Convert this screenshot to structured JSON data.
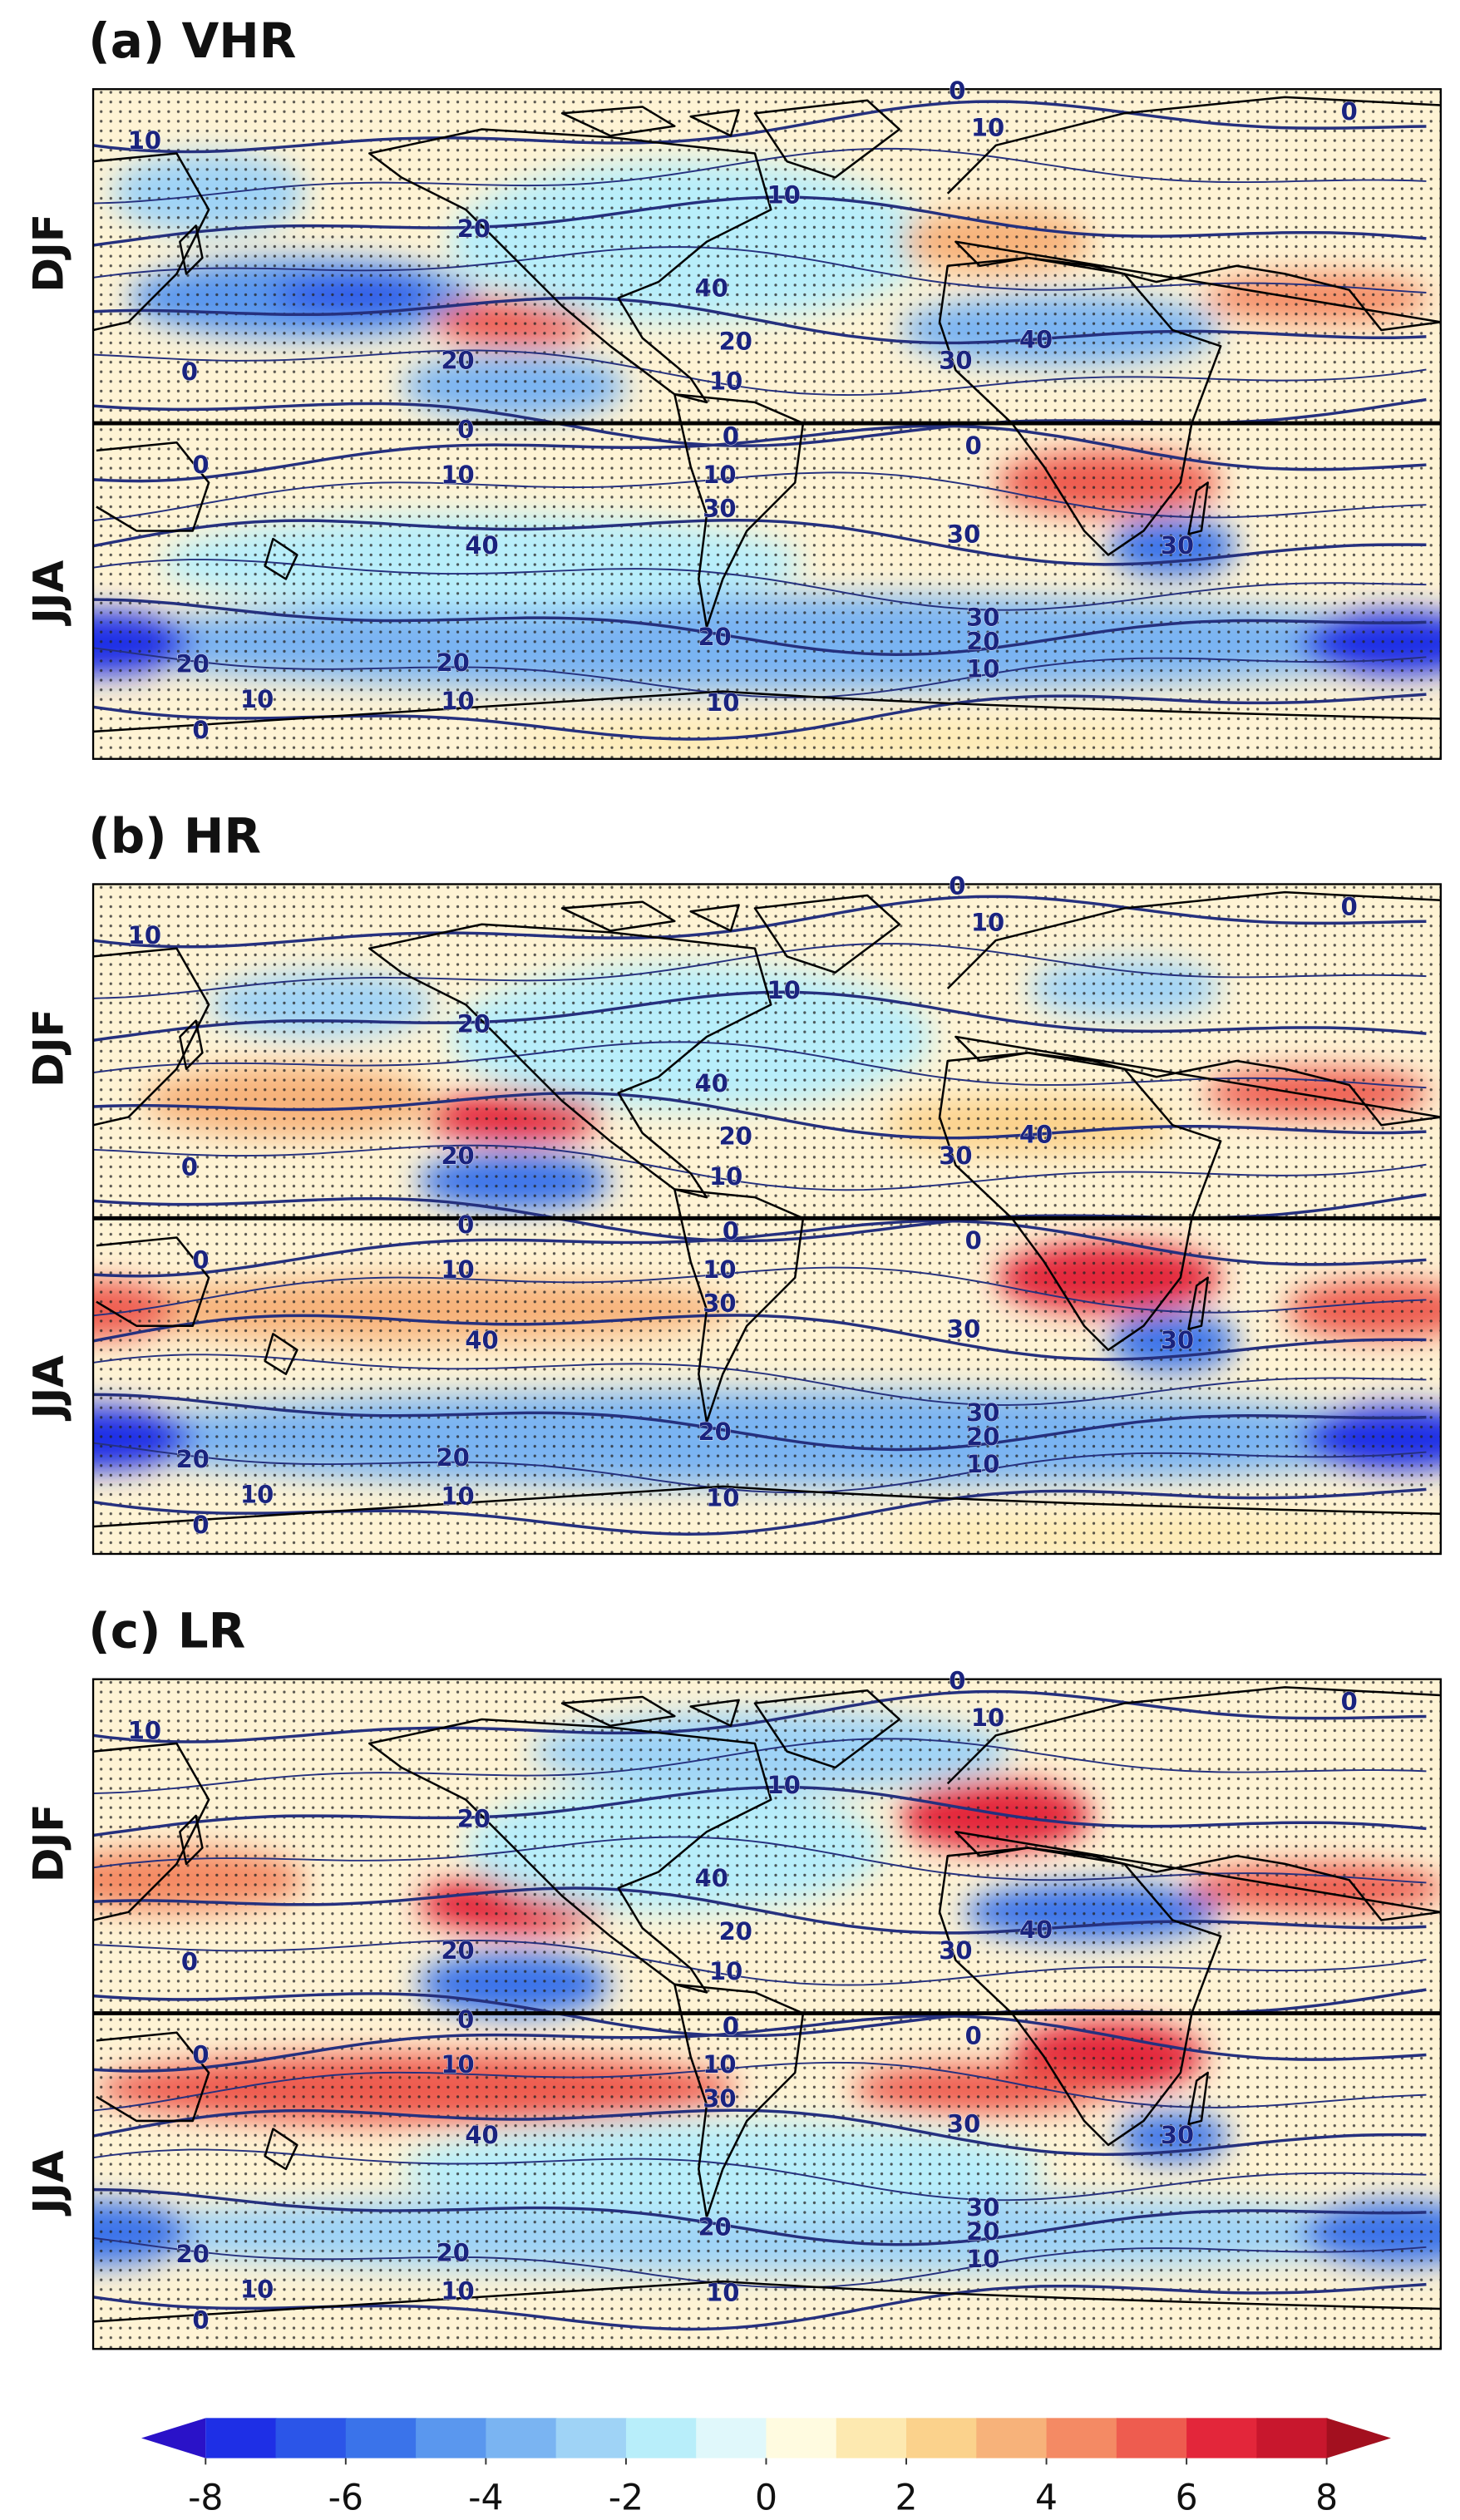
{
  "panels": [
    {
      "title": "(a) VHR",
      "rows": [
        "DJF",
        "JJA"
      ],
      "contour_labels": [
        0,
        10,
        0,
        10,
        10,
        20,
        40,
        20,
        20,
        30,
        40,
        0,
        10,
        0,
        0,
        0,
        0,
        10,
        10,
        30,
        40,
        30,
        30,
        30,
        20,
        10,
        20,
        20,
        20,
        10,
        10,
        10,
        0
      ]
    },
    {
      "title": "(b) HR",
      "rows": [
        "DJF",
        "JJA"
      ],
      "contour_labels": [
        0,
        10,
        0,
        10,
        10,
        20,
        40,
        20,
        20,
        30,
        40,
        0,
        10,
        0,
        0,
        0,
        0,
        10,
        10,
        30,
        40,
        30,
        30,
        30,
        20,
        10,
        20,
        20,
        20,
        10,
        10,
        10,
        0
      ]
    },
    {
      "title": "(c) LR",
      "rows": [
        "DJF",
        "JJA"
      ],
      "contour_labels": [
        0,
        10,
        0,
        10,
        10,
        20,
        40,
        20,
        20,
        30,
        40,
        0,
        10,
        0,
        0,
        0,
        0,
        10,
        10,
        30,
        40,
        30,
        30,
        30,
        20,
        10,
        20,
        20,
        20,
        10,
        10,
        10,
        0
      ]
    }
  ],
  "colorbar": {
    "lim": [
      -8,
      8
    ],
    "ticks": [
      -8,
      -6,
      -4,
      -2,
      0,
      2,
      4,
      6,
      8
    ],
    "colors": [
      "#2a12c8",
      "#1e2fe6",
      "#2b55e8",
      "#3a73ea",
      "#5a97ee",
      "#7ab4f2",
      "#9fd3f6",
      "#b8eefa",
      "#e0f8fb",
      "#fffbe0",
      "#fde9b0",
      "#fbd28c",
      "#f7b27a",
      "#f48a64",
      "#ee5c4f",
      "#e3263a",
      "#c8172d",
      "#a3101f"
    ]
  }
}
